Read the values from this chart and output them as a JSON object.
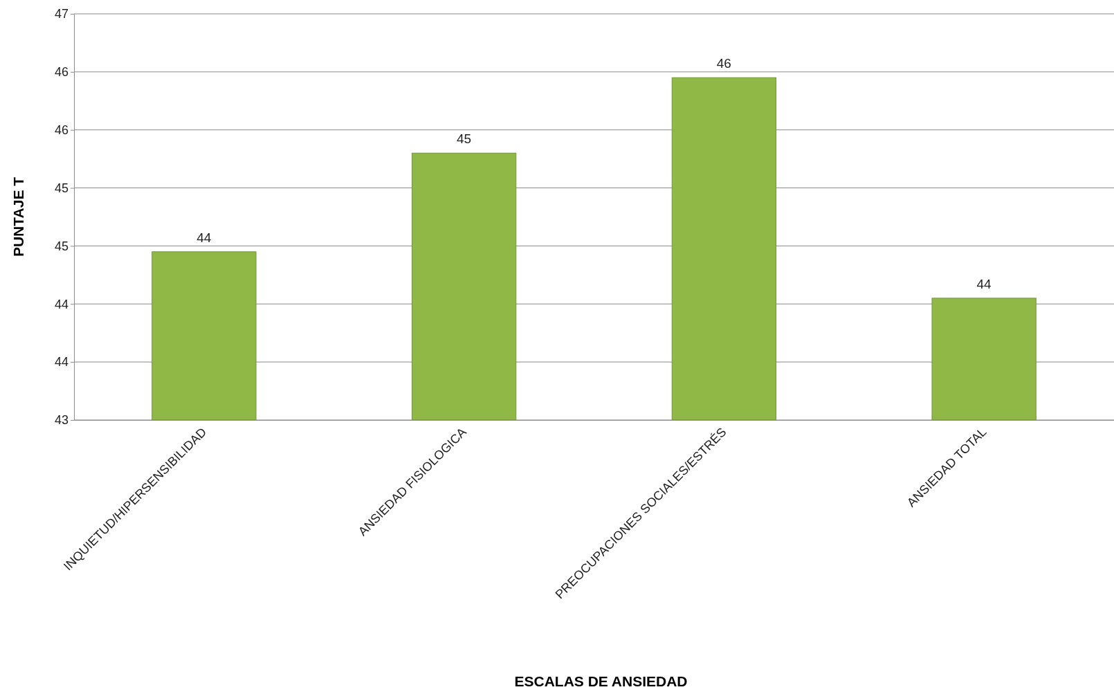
{
  "chart_data": {
    "type": "bar",
    "xlabel": "ESCALAS DE ANSIEDAD",
    "ylabel": "PUNTAJE T",
    "categories": [
      "INQUIETUD/HIPERSENSIBILIDAD",
      "ANSIEDAD FISIOLOGICA",
      "PREOCUPACIONES SOCIALES/ESTRÉS",
      "ANSIEDAD TOTAL"
    ],
    "values": [
      44.45,
      45.3,
      45.95,
      44.05
    ],
    "value_labels": [
      "44",
      "45",
      "46",
      "44"
    ],
    "color": "#8fb847",
    "ylim": [
      43,
      46.5
    ],
    "yticks": [
      43,
      {
        "value": 43.5,
        "label": "44"
      },
      44,
      {
        "value": 44.5,
        "label": "45"
      },
      45,
      {
        "value": 45.5,
        "label": "46"
      },
      46,
      {
        "value": 46.5,
        "label": "47"
      }
    ],
    "grid": "y"
  }
}
